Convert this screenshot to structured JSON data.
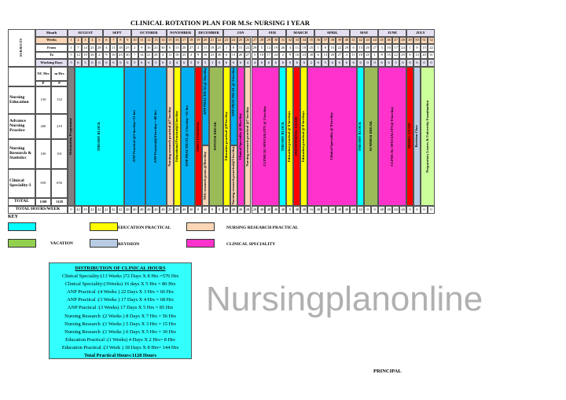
{
  "title": "CLINICAL ROTATION PLAN FOR M.Sc NURSING I YEAR",
  "header_labels": {
    "subjects": "SUBJECTS",
    "month": "Month",
    "weeks": "Weeks",
    "from": "From",
    "to": "To",
    "working_days": "Working Days"
  },
  "months": [
    {
      "name": "AUGUST",
      "weeks": 5
    },
    {
      "name": "SEPT",
      "weeks": 4
    },
    {
      "name": "OCTOBER",
      "weeks": 5
    },
    {
      "name": "NOVEMBER",
      "weeks": 4
    },
    {
      "name": "DECEMBER",
      "weeks": 4
    },
    {
      "name": "JAN",
      "weeks": 5
    },
    {
      "name": "FEB",
      "weeks": 4
    },
    {
      "name": "MARCH",
      "weeks": 4
    },
    {
      "name": "APRIL",
      "weeks": 5
    },
    {
      "name": "MAY",
      "weeks": 4
    },
    {
      "name": "JUNE",
      "weeks": 4
    },
    {
      "name": "JULY",
      "weeks": 4
    }
  ],
  "from": [
    1,
    7,
    14,
    21,
    28,
    4,
    11,
    18,
    25,
    2,
    9,
    16,
    23,
    30,
    6,
    13,
    20,
    27,
    4,
    11,
    18,
    25,
    1,
    8,
    15,
    22,
    29,
    5,
    12,
    19,
    26,
    4,
    11,
    18,
    25,
    1,
    8,
    15,
    22,
    29,
    6,
    13,
    20,
    27,
    3,
    10,
    17,
    24,
    1,
    8,
    15,
    22
  ],
  "to": [
    5,
    12,
    19,
    26,
    2,
    9,
    16,
    23,
    30,
    7,
    14,
    21,
    28,
    4,
    11,
    18,
    25,
    2,
    9,
    16,
    23,
    30,
    6,
    13,
    20,
    27,
    3,
    10,
    17,
    24,
    2,
    9,
    16,
    23,
    30,
    6,
    13,
    20,
    27,
    4,
    11,
    18,
    25,
    1,
    8,
    15,
    22,
    29,
    6,
    13,
    20,
    31
  ],
  "working_days": [
    5,
    6,
    5,
    6,
    6,
    6,
    6,
    6,
    6,
    5,
    6,
    6,
    5,
    6,
    4,
    4,
    6,
    5,
    0,
    5,
    1,
    0,
    6,
    6,
    6,
    4,
    4,
    6,
    6,
    6,
    6,
    0,
    6,
    6,
    2,
    6,
    5,
    6,
    6,
    6,
    6,
    6,
    0,
    0,
    6,
    6,
    5,
    6,
    0,
    6,
    0,
    0
  ],
  "subjects_table": {
    "col1": "NC Hrs",
    "col2": "m Hrs",
    "sub1": "P",
    "sub2": "P",
    "rows": [
      {
        "name": "Nursing Education",
        "a": "150",
        "b": "152"
      },
      {
        "name": "Advance Nursing Practice",
        "a": "200",
        "b": "219"
      },
      {
        "name": "Nursing Research & Statistics",
        "a": "100",
        "b": "101"
      },
      {
        "name": "Clinical Speciality-I",
        "a": "650",
        "b": "656"
      }
    ],
    "total": {
      "name": "TOTAL",
      "a": "1100",
      "b": "1128"
    },
    "total_hours_label": "TOTAL HOURS/WEEK"
  },
  "total_hours_week": [
    0,
    42,
    35,
    42,
    42,
    42,
    42,
    42,
    48,
    40,
    48,
    48,
    40,
    48,
    28,
    28,
    40,
    40,
    0,
    40,
    8,
    0,
    48,
    48,
    48,
    28,
    28,
    48,
    48,
    48,
    48,
    0,
    48,
    48,
    16,
    48,
    40,
    48,
    48,
    48,
    48,
    42,
    0,
    0,
    48,
    48,
    40,
    48,
    0,
    0,
    0,
    0
  ],
  "colors": {
    "theory": "#00ffff",
    "anp": "#00b0f0",
    "education": "#ffff00",
    "research": "#fbd5b5",
    "clinical": "#ff33cc",
    "exam": "#ff0000",
    "vacation": "#9bbb59",
    "revision": "#b8cce4",
    "prep": "#ccff99",
    "orientation": "#808080"
  },
  "blocks": [
    {
      "start": 1,
      "end": 1,
      "label": "Orientation Programme",
      "color": "#808080"
    },
    {
      "start": 2,
      "end": 8,
      "label": "THEORY BLOCK",
      "color": "#00ffff"
    },
    {
      "start": 9,
      "end": 11,
      "label": "ANP Practical @3 hrs/day=51 hrs",
      "color": "#00b0f0"
    },
    {
      "start": 12,
      "end": 14,
      "label": "ANP Practical@4 hrs/day = 68 hrs",
      "color": "#00b0f0"
    },
    {
      "start": 15,
      "end": 15,
      "label": "Nursing research practical @7 hrs/day",
      "color": "#fbd5b5"
    },
    {
      "start": 16,
      "end": 16,
      "label": "Educational Practical@2 hrs/day",
      "color": "#ffff00"
    },
    {
      "start": 17,
      "end": 18,
      "label": "ANP PRACTICAL @ 5 hrs/day =55 hrs",
      "color": "#00b0f0"
    },
    {
      "start": 19,
      "end": 19,
      "label": "FIRST INTERNAL",
      "color": "#ff0000"
    },
    {
      "start": 20,
      "end": 20,
      "label": "ANP PRACTICAL@ 5hrs/day",
      "color": "#00b0f0",
      "bottom_label": "NSG research pract.@3hrs/day",
      "bottom_color": "#fbd5b5"
    },
    {
      "start": 21,
      "end": 22,
      "label": "WINTER BREAK",
      "color": "#9bbb59"
    },
    {
      "start": 23,
      "end": 23,
      "label": "Education practical @8 hrs/day",
      "color": "#ffff00"
    },
    {
      "start": 24,
      "end": 24,
      "label": "ANP PRACTICAL @ 3 hrs/day",
      "color": "#00b0f0",
      "bottom_label": "Nursing research practical@5 hrs/day",
      "bottom_color": "#fbd5b5"
    },
    {
      "start": 25,
      "end": 25,
      "label": "Clinical Speciality @ 8hrs/day",
      "color": "#ff33cc"
    },
    {
      "start": 26,
      "end": 26,
      "label": "Nursing research practical @7 hrs/day",
      "color": "#fbd5b5"
    },
    {
      "start": 27,
      "end": 30,
      "label": "CLINICAL SPECIALITY @     5 hrs/day",
      "color": "#ff33cc"
    },
    {
      "start": 31,
      "end": 31,
      "label": "THEORY BLOCK",
      "color": "#00ffff"
    },
    {
      "start": 32,
      "end": 32,
      "label": "Education practical @ 8 hrs/days",
      "color": "#ffff00"
    },
    {
      "start": 33,
      "end": 33,
      "label": "2ND INTERNAL EXAM",
      "color": "#ff0000"
    },
    {
      "start": 34,
      "end": 34,
      "label": "Education practical @ 8 hrs/days",
      "color": "#ffff00"
    },
    {
      "start": 35,
      "end": 41,
      "label": "Clinical Speciality @ 8 hrs/day",
      "color": "#ff33cc"
    },
    {
      "start": 42,
      "end": 42,
      "label": "THEORY BLOCK",
      "color": "#00ffff"
    },
    {
      "start": 43,
      "end": 44,
      "label": "SUMMER BREAK",
      "color": "#9bbb59"
    },
    {
      "start": 45,
      "end": 48,
      "label": "CLINICAL SPECIALITY@ 8 hrs/day",
      "color": "#ff33cc"
    },
    {
      "start": 49,
      "end": 49,
      "label": "MODEL EXAM",
      "color": "#ff0000"
    },
    {
      "start": 50,
      "end": 50,
      "label": "Revision Class",
      "color": "#b8cce4"
    },
    {
      "start": 51,
      "end": 52,
      "label": "Preparatory Leaves & University Examination",
      "color": "#ccff99"
    }
  ],
  "key": {
    "title": "KEY",
    "items": [
      {
        "label": "",
        "color": "#00ffff"
      },
      {
        "label": "EDUCATION PRACTICAL",
        "color": "#ffff00"
      },
      {
        "label": "NURSING RESEARCH PRACTICAL",
        "color": "#fbd5b5"
      },
      {
        "label": "VACATION",
        "color": "#92d050"
      },
      {
        "label": "REVISION",
        "color": "#b8cce4"
      },
      {
        "label": "CLINICAL SPECIALITY",
        "color": "#ff33cc"
      }
    ]
  },
  "distribution": {
    "title": "DISTRIBUTION OF CLINICAL HOURS",
    "lines": [
      "Clinical Speciality:(13 Weeks )72 Days X 8 Hrs  =576 Hrs",
      "Clinical Speciality:(3Weeks) 16 days X 5 Hrs = 80 Hrs",
      "ANP Practical :(4 Weeks ) 22 Days X 3 Hrs    = 66 Hrs",
      "ANP Practical :(3 Weeks ) 17 Days X 4 Hrs    = 68 Hrs",
      "ANP Practical :(3 Weeks)  17 Days X 5 Hrs    = 85 Hrs",
      "Nursing Research :(2 Weeks ) 8 Days X 7 Hrs  = 56 Hrs",
      "Nursing Research :(1 Weeks ) 5 Days X 3 Hrs  = 15 Hrs",
      "Nursing Research :(1 Weeks ) 6 Days X 5 Hrs  = 30 Hrs",
      "Education Practical :(1 Weeks) 4 Days X 2 Hrs= 8 Hrs",
      "Education Practical :(3 Week ) 18 Days X 8 Hrs= 144 Hrs"
    ],
    "total": "Total Practical Hours:1128 Hours"
  },
  "signature": "PRINCIPAL",
  "watermark": "Nursingplanonline"
}
